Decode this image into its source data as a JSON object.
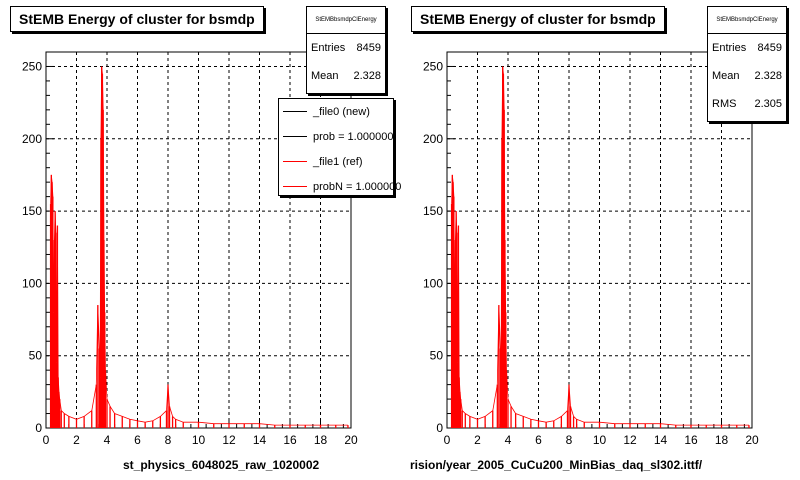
{
  "page": {
    "left_xlabel": "st_physics_6048025_raw_1020002",
    "right_xlabel": "rision/year_2005_CuCu200_MinBias_daq_sl302.ittf/"
  },
  "stats": {
    "box_title": "StEMBbsmdpClEnergy",
    "entries_label": "Entries",
    "entries_value": "8459",
    "mean_label": "Mean",
    "mean_value": "2.328",
    "rms_label": "RMS",
    "rms_value": "2.305"
  },
  "legend": [
    {
      "label": "_file0 (new)",
      "color": "#000000"
    },
    {
      "label": "prob = 1.000000",
      "color": "#000000"
    },
    {
      "label": "_file1 (ref)",
      "color": "#ff0000"
    },
    {
      "label": "probN = 1.000000",
      "color": "#ff0000"
    }
  ],
  "chart_data": [
    {
      "type": "bar",
      "title": "StEMB Energy of cluster for bsmdp",
      "xlabel": "st_physics_6048025_raw_1020002",
      "xlim": [
        0,
        20
      ],
      "ylim": [
        0,
        260
      ],
      "xticks": [
        0,
        2,
        4,
        6,
        8,
        10,
        12,
        14,
        16,
        18,
        20
      ],
      "yticks": [
        0,
        50,
        100,
        150,
        200,
        250
      ],
      "grid": true,
      "series": [
        {
          "name": "_file1 (ref)",
          "color": "#ff0000",
          "x": [
            0.3,
            0.35,
            0.4,
            0.45,
            0.5,
            0.55,
            0.6,
            0.65,
            0.7,
            0.75,
            0.8,
            0.85,
            0.9,
            1.0,
            1.2,
            1.5,
            2.0,
            2.5,
            3.0,
            3.3,
            3.4,
            3.5,
            3.55,
            3.6,
            3.65,
            3.7,
            3.75,
            3.8,
            3.85,
            3.9,
            4.0,
            4.2,
            4.5,
            5.0,
            5.5,
            6.0,
            6.5,
            7.0,
            7.5,
            7.9,
            8.0,
            8.1,
            8.3,
            8.5,
            9.0,
            10.0,
            11.0,
            12.0,
            13.0,
            14.0,
            15.0,
            16.0,
            17.0,
            18.0,
            19.0,
            19.8
          ],
          "values": [
            155,
            175,
            170,
            160,
            80,
            130,
            150,
            135,
            45,
            140,
            35,
            25,
            20,
            12,
            10,
            8,
            6,
            8,
            12,
            30,
            85,
            55,
            35,
            200,
            250,
            245,
            220,
            130,
            80,
            40,
            20,
            15,
            10,
            8,
            6,
            5,
            4,
            5,
            8,
            12,
            30,
            15,
            8,
            6,
            4,
            4,
            3,
            3,
            3,
            3,
            2,
            2,
            2,
            2,
            2,
            2
          ]
        }
      ]
    },
    {
      "type": "bar",
      "title": "StEMB Energy of cluster for bsmdp",
      "xlabel": "rision/year_2005_CuCu200_MinBias_daq_sl302.ittf/",
      "xlim": [
        0,
        20
      ],
      "ylim": [
        0,
        260
      ],
      "xticks": [
        0,
        2,
        4,
        6,
        8,
        10,
        12,
        14,
        16,
        18,
        20
      ],
      "yticks": [
        0,
        50,
        100,
        150,
        200,
        250
      ],
      "grid": true,
      "series": [
        {
          "name": "",
          "color": "#ff0000",
          "x": [
            0.3,
            0.35,
            0.4,
            0.45,
            0.5,
            0.55,
            0.6,
            0.65,
            0.7,
            0.75,
            0.8,
            0.85,
            0.9,
            1.0,
            1.2,
            1.5,
            2.0,
            2.5,
            3.0,
            3.3,
            3.4,
            3.5,
            3.55,
            3.6,
            3.65,
            3.7,
            3.75,
            3.8,
            3.85,
            3.9,
            4.0,
            4.2,
            4.5,
            5.0,
            5.5,
            6.0,
            6.5,
            7.0,
            7.5,
            7.9,
            8.0,
            8.1,
            8.3,
            8.5,
            9.0,
            10.0,
            11.0,
            12.0,
            13.0,
            14.0,
            15.0,
            16.0,
            17.0,
            18.0,
            19.0,
            19.8
          ],
          "values": [
            155,
            175,
            170,
            160,
            80,
            130,
            150,
            135,
            45,
            140,
            35,
            25,
            20,
            12,
            10,
            8,
            6,
            8,
            12,
            30,
            85,
            55,
            35,
            200,
            250,
            245,
            220,
            130,
            80,
            40,
            20,
            15,
            10,
            8,
            6,
            5,
            4,
            5,
            8,
            12,
            30,
            15,
            8,
            6,
            4,
            4,
            3,
            3,
            3,
            3,
            2,
            2,
            2,
            2,
            2,
            2
          ]
        }
      ]
    }
  ]
}
